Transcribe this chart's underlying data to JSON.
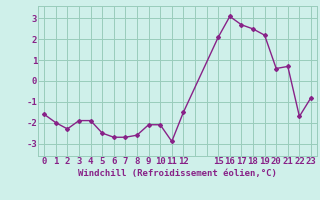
{
  "x": [
    0,
    1,
    2,
    3,
    4,
    5,
    6,
    7,
    8,
    9,
    10,
    11,
    12,
    15,
    16,
    17,
    18,
    19,
    20,
    21,
    22,
    23
  ],
  "y": [
    -1.6,
    -2.0,
    -2.3,
    -1.9,
    -1.9,
    -2.5,
    -2.7,
    -2.7,
    -2.6,
    -2.1,
    -2.1,
    -2.9,
    -1.5,
    2.1,
    3.1,
    2.7,
    2.5,
    2.2,
    0.6,
    0.7,
    -1.7,
    -0.8
  ],
  "line_color": "#882288",
  "marker": "D",
  "marker_size": 2.0,
  "bg_color": "#cff0ea",
  "grid_color": "#99ccbb",
  "xlabel": "Windchill (Refroidissement éolien,°C)",
  "xlim": [
    -0.5,
    23.5
  ],
  "ylim": [
    -3.6,
    3.6
  ],
  "yticks": [
    -3,
    -2,
    -1,
    0,
    1,
    2,
    3
  ],
  "xtick_positions": [
    0,
    1,
    2,
    3,
    4,
    5,
    6,
    7,
    8,
    9,
    10,
    11,
    12,
    13,
    14,
    15,
    16,
    17,
    18,
    19,
    20,
    21,
    22,
    23
  ],
  "xtick_labels": [
    "0",
    "1",
    "2",
    "3",
    "4",
    "5",
    "6",
    "7",
    "8",
    "9",
    "10",
    "11",
    "12",
    "",
    "",
    "15",
    "16",
    "17",
    "18",
    "19",
    "20",
    "21",
    "22",
    "23"
  ],
  "label_fontsize": 6.5,
  "tick_fontsize": 6.5,
  "linewidth": 1.0
}
